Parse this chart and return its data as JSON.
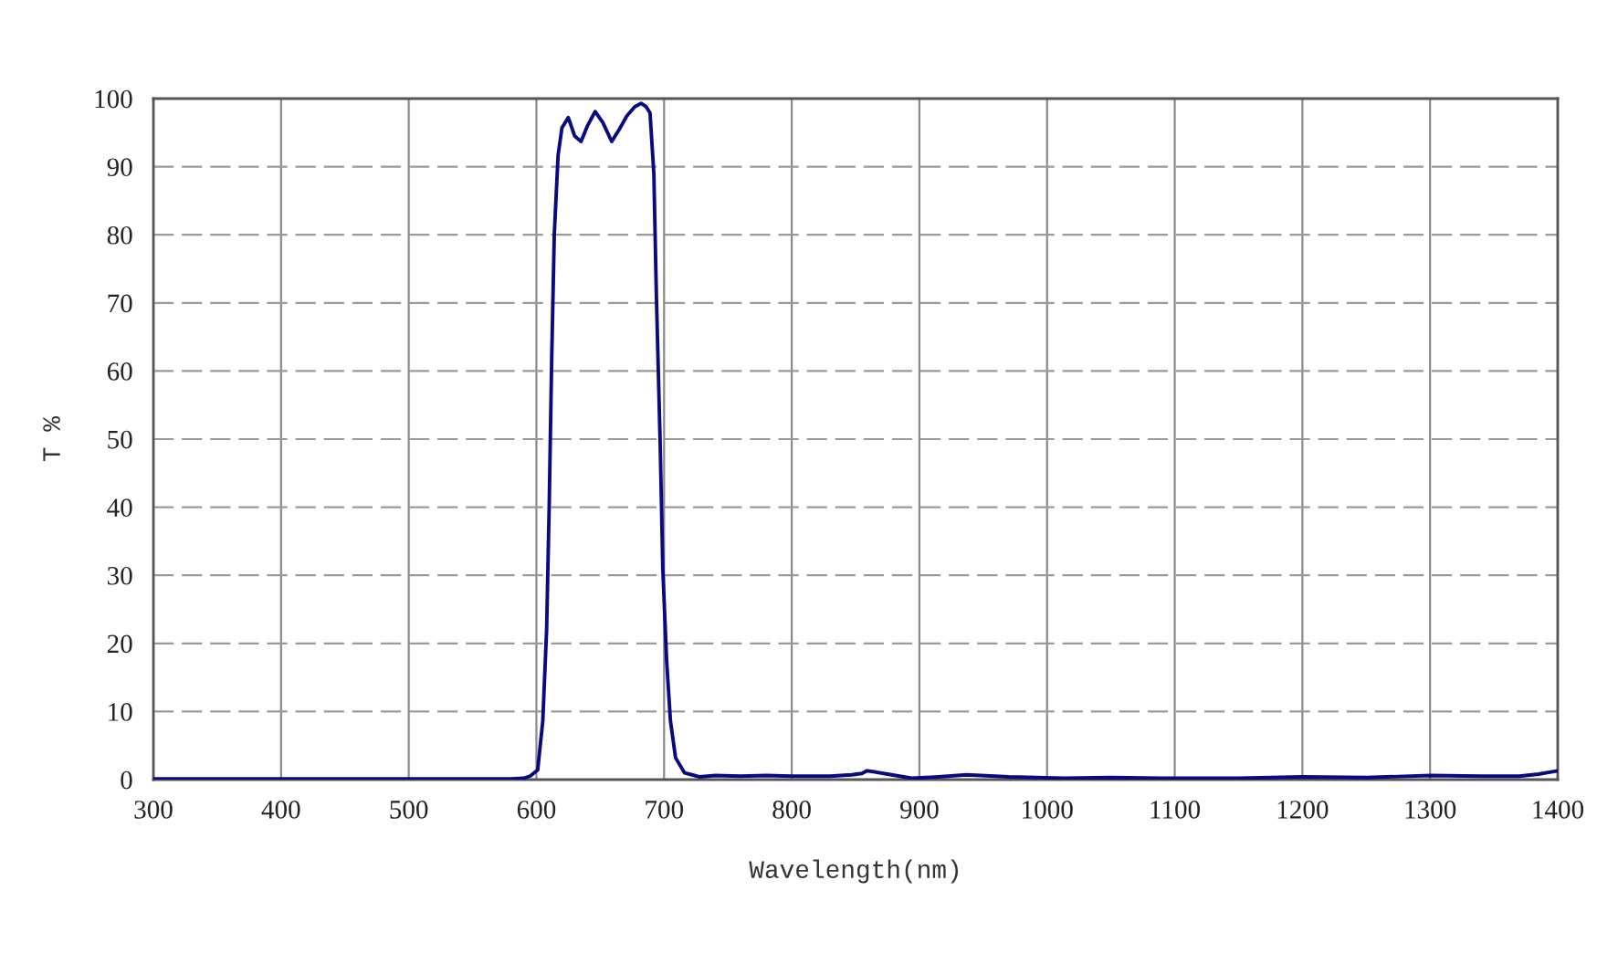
{
  "chart_data": {
    "type": "line",
    "xlabel": "Wavelength(nm)",
    "ylabel": "T %",
    "x": [
      300,
      400,
      500,
      550,
      580,
      590,
      595,
      601,
      605,
      608,
      610,
      612,
      614,
      617,
      620,
      625,
      630,
      635,
      640,
      646,
      652,
      659,
      665,
      671,
      677,
      682,
      686,
      689,
      692,
      694,
      697,
      699,
      702,
      705,
      709,
      716,
      728,
      740,
      760,
      780,
      800,
      830,
      847,
      855,
      859,
      866,
      875,
      894,
      915,
      937,
      970,
      1013,
      1050,
      1100,
      1150,
      1200,
      1250,
      1300,
      1340,
      1370,
      1385,
      1400
    ],
    "series": [
      {
        "color": "#0a0a80",
        "values": [
          0.1,
          0.1,
          0.1,
          0.1,
          0.1,
          0.2,
          0.5,
          1.4,
          8.6,
          22,
          40,
          62,
          80,
          91.7,
          95.7,
          97.2,
          94.5,
          93.7,
          96,
          98.1,
          96.5,
          93.7,
          95.5,
          97.5,
          98.8,
          99.3,
          98.8,
          97.9,
          89,
          71,
          49,
          31,
          17.5,
          8.6,
          3.2,
          1.0,
          0.4,
          0.6,
          0.5,
          0.6,
          0.5,
          0.5,
          0.7,
          0.9,
          1.3,
          1.1,
          0.8,
          0.2,
          0.4,
          0.7,
          0.4,
          0.2,
          0.3,
          0.2,
          0.2,
          0.4,
          0.3,
          0.6,
          0.5,
          0.5,
          0.8,
          1.3
        ]
      }
    ],
    "xlim": [
      300,
      1400
    ],
    "ylim": [
      0,
      100
    ],
    "xticks": [
      300,
      400,
      500,
      600,
      700,
      800,
      900,
      1000,
      1100,
      1200,
      1300,
      1400
    ],
    "yticks": [
      0,
      10,
      20,
      30,
      40,
      50,
      60,
      70,
      80,
      90,
      100
    ],
    "grid": true,
    "marker": "none",
    "line_style": "solid"
  }
}
